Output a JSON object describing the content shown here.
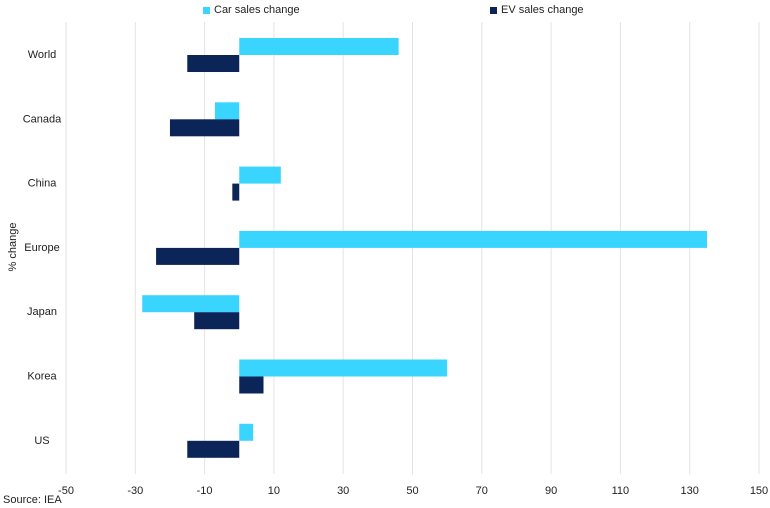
{
  "chart_data": {
    "type": "bar",
    "orientation": "horizontal",
    "categories": [
      "World",
      "Canada",
      "China",
      "Europe",
      "Japan",
      "Korea",
      "US"
    ],
    "series": [
      {
        "name": "Car sales change",
        "values": [
          46,
          -7,
          12,
          135,
          -28,
          60,
          4
        ],
        "color": "#3ad5ff"
      },
      {
        "name": "EV sales change",
        "values": [
          -15,
          -20,
          -2,
          -24,
          -13,
          7,
          -15
        ],
        "color": "#0b2559"
      }
    ],
    "ylabel": "% change",
    "xticks": [
      "-50",
      "-30",
      "-10",
      "10",
      "30",
      "50",
      "70",
      "90",
      "110",
      "130",
      "150"
    ],
    "xlim": [
      -50,
      150
    ],
    "grid": "vertical",
    "legend": "top"
  },
  "source": "Source: IEA"
}
